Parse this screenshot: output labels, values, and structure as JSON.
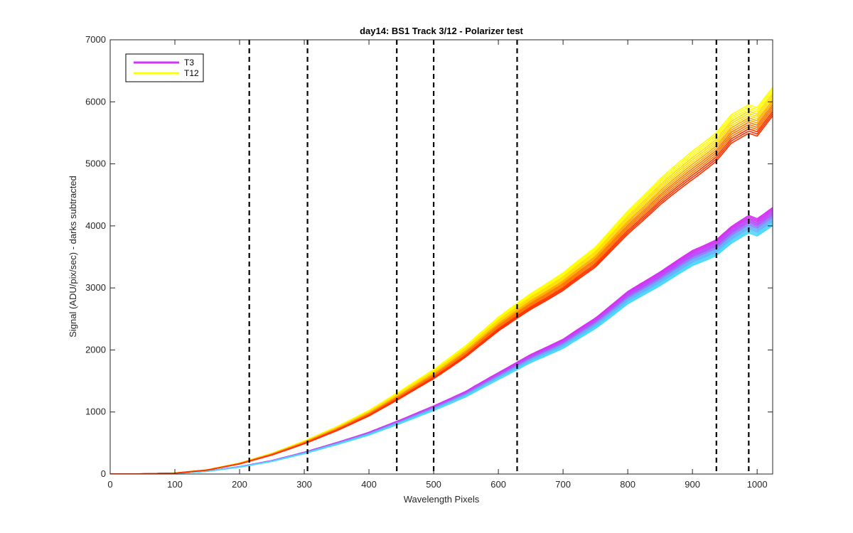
{
  "chart_data": {
    "type": "line",
    "title": "day14: BS1  Track 3/12 - Polarizer test",
    "xlabel": "Wavelength Pixels",
    "ylabel": "Signal (ADU/pix/sec) - darks subtracted",
    "xlim": [
      0,
      1024
    ],
    "ylim": [
      0,
      7000
    ],
    "xticks": [
      0,
      100,
      200,
      300,
      400,
      500,
      600,
      700,
      800,
      900,
      1000
    ],
    "yticks": [
      0,
      1000,
      2000,
      3000,
      4000,
      5000,
      6000,
      7000
    ],
    "grid": false,
    "legend_position": "top-left",
    "vlines": [
      215,
      305,
      443,
      500,
      629,
      937,
      987
    ],
    "vline_style": "dashed",
    "vline_color": "#000000",
    "series": [
      {
        "name": "T3",
        "color": "#cc33ff",
        "gradient_colors": [
          "#d633f2",
          "#b84dff",
          "#8c80ff",
          "#66b3ff",
          "#4dd9ff"
        ],
        "band_offset": 175,
        "x": [
          0,
          50,
          100,
          150,
          200,
          250,
          300,
          350,
          400,
          450,
          500,
          550,
          600,
          650,
          700,
          750,
          800,
          850,
          900,
          937,
          960,
          987,
          1000,
          1024
        ],
        "y": [
          0,
          2,
          10,
          45,
          115,
          210,
          340,
          490,
          650,
          850,
          1060,
          1290,
          1580,
          1860,
          2100,
          2430,
          2840,
          3150,
          3480,
          3650,
          3850,
          4030,
          3980,
          4150
        ]
      },
      {
        "name": "T12",
        "color": "#ffff00",
        "gradient_colors": [
          "#ffff00",
          "#ffdd00",
          "#ffaa00",
          "#ff7700",
          "#ff3300"
        ],
        "band_offset": 230,
        "x": [
          0,
          50,
          100,
          150,
          200,
          250,
          300,
          350,
          400,
          450,
          500,
          550,
          600,
          650,
          700,
          750,
          800,
          850,
          900,
          937,
          960,
          987,
          1000,
          1024
        ],
        "y": [
          0,
          3,
          15,
          65,
          170,
          320,
          510,
          730,
          980,
          1290,
          1610,
          1980,
          2420,
          2780,
          3100,
          3500,
          4050,
          4550,
          4980,
          5270,
          5560,
          5730,
          5680,
          6000
        ]
      }
    ]
  }
}
